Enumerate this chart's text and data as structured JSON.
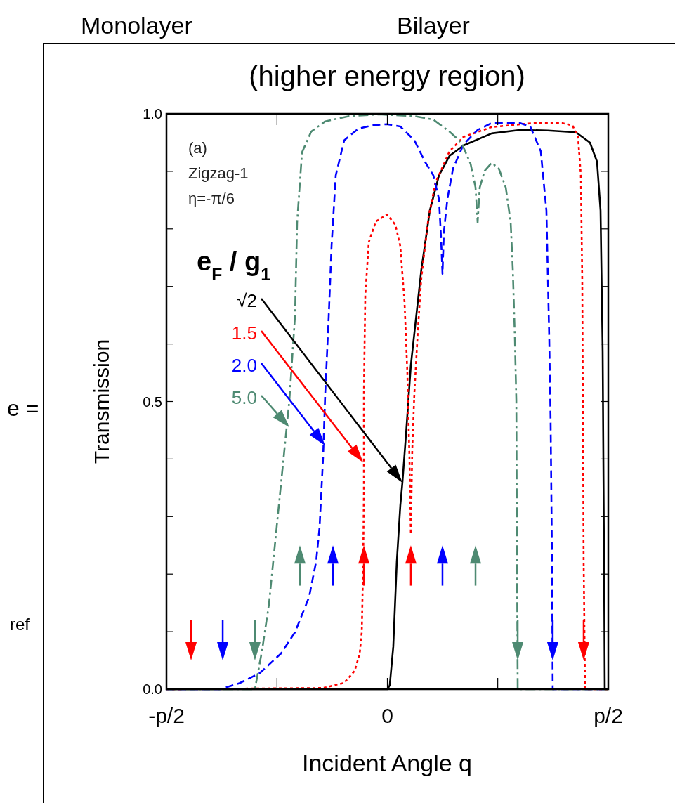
{
  "chart_data": {
    "type": "line",
    "title": "(higher energy region)",
    "xlabel": "Incident Angle q",
    "ylabel": "Transmission",
    "legend_title": "e$_{F}$ / g$_{1}$",
    "xlim": [
      -1.571,
      1.571
    ],
    "ylim": [
      0,
      1
    ],
    "xticks": [
      {
        "value": -1.571,
        "label": "-p/2"
      },
      {
        "value": -0.785,
        "label": null
      },
      {
        "value": 0,
        "label": "0"
      },
      {
        "value": 0.785,
        "label": null
      },
      {
        "value": 1.571,
        "label": "p/2"
      }
    ],
    "yticks": [
      {
        "value": 0,
        "label": "0.0"
      },
      {
        "value": 0.1,
        "label": null
      },
      {
        "value": 0.2,
        "label": null
      },
      {
        "value": 0.3,
        "label": null
      },
      {
        "value": 0.4,
        "label": null
      },
      {
        "value": 0.5,
        "label": "0.5"
      },
      {
        "value": 0.6,
        "label": null
      },
      {
        "value": 0.7,
        "label": null
      },
      {
        "value": 0.8,
        "label": null
      },
      {
        "value": 0.9,
        "label": null
      },
      {
        "value": 1,
        "label": "1.0"
      }
    ],
    "grid": false,
    "legend": "left",
    "annotations": [
      "(a)",
      "Zigzag-1",
      "η=-π/6",
      "Monolayer",
      "Bilayer",
      "e =",
      "ref"
    ],
    "series": [
      {
        "name": "√2",
        "color": "#000000",
        "line_style": "solid",
        "x": [
          -1.571,
          -0.007,
          0.002,
          0.017,
          0.042,
          0.067,
          0.092,
          0.107,
          0.132,
          0.167,
          0.242,
          0.302,
          0.367,
          0.442,
          0.542,
          0.742,
          0.941,
          1.141,
          1.341,
          1.441,
          1.491,
          1.516,
          1.531,
          1.541,
          1.546,
          1.571
        ],
        "values": [
          0,
          0,
          0,
          0.007,
          0.074,
          0.221,
          0.319,
          0.359,
          0.441,
          0.563,
          0.73,
          0.832,
          0.893,
          0.927,
          0.945,
          0.966,
          0.972,
          0.971,
          0.968,
          0.95,
          0.917,
          0.832,
          0.587,
          0.221,
          0,
          0
        ]
      },
      {
        "name": "1.5",
        "color": "#ff0000",
        "line_style": "dotted",
        "x": [
          -1.571,
          -0.457,
          -0.307,
          -0.232,
          -0.197,
          -0.182,
          -0.172,
          -0.167,
          -0.167,
          -0.157,
          -0.132,
          -0.082,
          -0.002,
          0.057,
          0.092,
          0.122,
          0.142,
          0.157,
          0.167,
          0.177,
          0.192,
          0.217,
          0.242,
          0.292,
          0.342,
          0.442,
          0.542,
          0.742,
          1.041,
          1.241,
          1.316,
          1.356,
          1.376,
          1.386,
          1.391,
          1.396,
          1.406,
          1.571
        ],
        "values": [
          0,
          0.002,
          0.011,
          0.032,
          0.062,
          0.099,
          0.221,
          0.343,
          0.514,
          0.685,
          0.777,
          0.813,
          0.825,
          0.807,
          0.77,
          0.673,
          0.551,
          0.404,
          0.27,
          0.416,
          0.514,
          0.624,
          0.716,
          0.819,
          0.88,
          0.935,
          0.96,
          0.977,
          0.984,
          0.984,
          0.98,
          0.96,
          0.893,
          0.709,
          0.465,
          0.221,
          0,
          0
        ]
      },
      {
        "name": "2.0",
        "color": "#0000ff",
        "line_style": "dashed",
        "x": [
          -1.571,
          -1.191,
          -1.056,
          -0.907,
          -0.757,
          -0.657,
          -0.557,
          -0.507,
          -0.482,
          -0.457,
          -0.442,
          -0.417,
          -0.397,
          -0.367,
          -0.307,
          -0.207,
          -0.107,
          -0.002,
          0.092,
          0.192,
          0.267,
          0.327,
          0.367,
          0.382,
          0.392,
          0.402,
          0.427,
          0.467,
          0.542,
          0.642,
          0.742,
          0.941,
          1.016,
          1.091,
          1.131,
          1.151,
          1.161,
          1.171,
          1.176,
          1.571
        ],
        "values": [
          0,
          0,
          0.01,
          0.028,
          0.062,
          0.099,
          0.16,
          0.221,
          0.282,
          0.404,
          0.514,
          0.648,
          0.77,
          0.893,
          0.954,
          0.974,
          0.98,
          0.982,
          0.978,
          0.954,
          0.917,
          0.893,
          0.852,
          0.783,
          0.722,
          0.795,
          0.852,
          0.905,
          0.947,
          0.972,
          0.984,
          0.984,
          0.978,
          0.935,
          0.832,
          0.612,
          0.465,
          0.221,
          0,
          0
        ]
      },
      {
        "name": "5.0",
        "color": "#4e8a72",
        "line_style": "dashdot",
        "x": [
          -1.571,
          -0.942,
          -0.892,
          -0.842,
          -0.792,
          -0.742,
          -0.697,
          -0.657,
          -0.642,
          -0.607,
          -0.542,
          -0.442,
          -0.272,
          -0.057,
          0.192,
          0.327,
          0.442,
          0.527,
          0.592,
          0.627,
          0.642,
          0.657,
          0.692,
          0.742,
          0.792,
          0.842,
          0.877,
          0.892,
          0.907,
          0.917,
          0.922,
          0.927,
          1.571
        ],
        "values": [
          0,
          0,
          0.066,
          0.148,
          0.27,
          0.392,
          0.502,
          0.648,
          0.811,
          0.933,
          0.969,
          0.987,
          0.996,
          0.999,
          0.996,
          0.99,
          0.969,
          0.95,
          0.913,
          0.872,
          0.811,
          0.872,
          0.901,
          0.915,
          0.905,
          0.872,
          0.811,
          0.73,
          0.608,
          0.502,
          0.221,
          0,
          0
        ]
      }
    ]
  }
}
